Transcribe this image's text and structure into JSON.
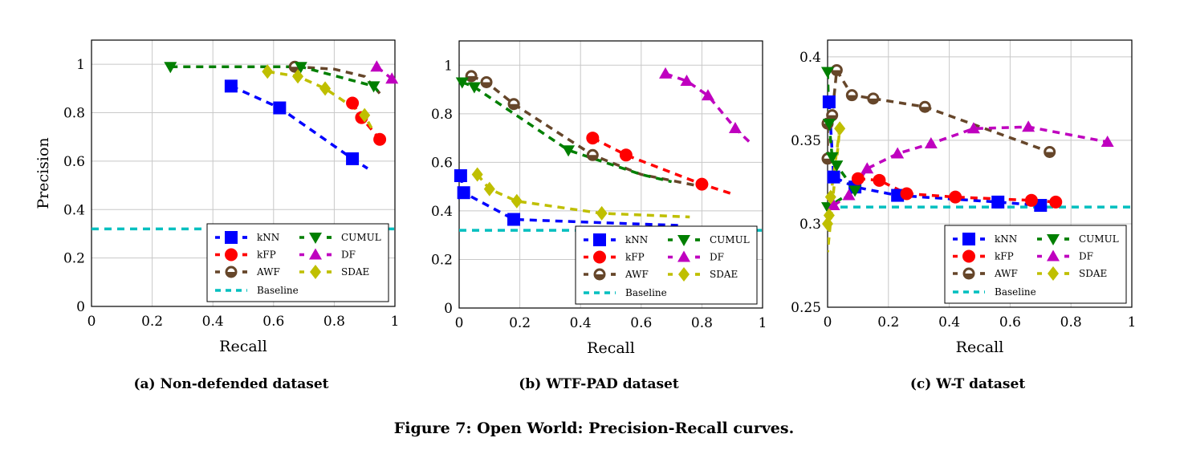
{
  "figure_caption": "Figure 7: Open World: Precision-Recall curves.",
  "colors": {
    "kNN": "#0000ff",
    "kFP": "#ff0000",
    "AWF": "#66462a",
    "CUMUL": "#007f00",
    "DF": "#bf00bf",
    "SDAE": "#bfbf00",
    "Baseline": "#00bfbf"
  },
  "chart_data": [
    {
      "type": "line",
      "caption": "(a) Non-defended dataset",
      "xlabel": "Recall",
      "ylabel": "Precision",
      "xlim": [
        0,
        1
      ],
      "ylim": [
        0,
        1.1
      ],
      "xticks": [
        "0",
        "0.2",
        "0.4",
        "0.6",
        "0.8",
        "1"
      ],
      "xtick_values": [
        0,
        0.2,
        0.4,
        0.6,
        0.8,
        1
      ],
      "yticks": [
        "0",
        "0.2",
        "0.4",
        "0.6",
        "0.8",
        "1"
      ],
      "ytick_values": [
        0,
        0.2,
        0.4,
        0.6,
        0.8,
        1
      ],
      "grid": true,
      "legend": "bottom-right",
      "baseline": 0.32,
      "series": [
        {
          "name": "kNN",
          "marker": "square",
          "points": [
            [
              0.46,
              0.91
            ],
            [
              0.62,
              0.82
            ],
            [
              0.86,
              0.61
            ]
          ],
          "tail": [
            [
              0.91,
              0.57
            ]
          ]
        },
        {
          "name": "kFP",
          "marker": "circle",
          "points": [
            [
              0.86,
              0.84
            ],
            [
              0.89,
              0.78
            ],
            [
              0.95,
              0.69
            ]
          ],
          "tail": []
        },
        {
          "name": "AWF",
          "marker": "ocircle",
          "points": [
            [
              0.67,
              0.99
            ]
          ],
          "tail": [
            [
              0.8,
              0.98
            ],
            [
              0.9,
              0.95
            ],
            [
              0.95,
              0.88
            ]
          ]
        },
        {
          "name": "CUMUL",
          "marker": "tridown",
          "points": [
            [
              0.26,
              0.99
            ],
            [
              0.69,
              0.99
            ],
            [
              0.93,
              0.91
            ]
          ],
          "tail": [
            [
              0.95,
              0.88
            ]
          ]
        },
        {
          "name": "DF",
          "marker": "triup",
          "points": [
            [
              0.94,
              0.99
            ],
            [
              0.99,
              0.94
            ]
          ],
          "tail": []
        },
        {
          "name": "SDAE",
          "marker": "diamond",
          "points": [
            [
              0.58,
              0.97
            ],
            [
              0.68,
              0.95
            ],
            [
              0.77,
              0.9
            ],
            [
              0.9,
              0.79
            ]
          ],
          "tail": [
            [
              0.93,
              0.72
            ]
          ]
        }
      ]
    },
    {
      "type": "line",
      "caption": "(b) WTF-PAD dataset",
      "xlabel": "Recall",
      "ylabel": "",
      "xlim": [
        0,
        1
      ],
      "ylim": [
        0,
        1.1
      ],
      "xticks": [
        "0",
        "0.2",
        "0.4",
        "0.6",
        "0.8",
        "1"
      ],
      "xtick_values": [
        0,
        0.2,
        0.4,
        0.6,
        0.8,
        1
      ],
      "yticks": [
        "0",
        "0.2",
        "0.4",
        "0.6",
        "0.8",
        "1"
      ],
      "ytick_values": [
        0,
        0.2,
        0.4,
        0.6,
        0.8,
        1
      ],
      "grid": true,
      "legend": "bottom-right",
      "baseline": 0.32,
      "series": [
        {
          "name": "kNN",
          "marker": "square",
          "points": [
            [
              0.005,
              0.545
            ],
            [
              0.015,
              0.475
            ],
            [
              0.18,
              0.365
            ]
          ],
          "tail": [
            [
              0.5,
              0.35
            ],
            [
              0.73,
              0.34
            ]
          ]
        },
        {
          "name": "kFP",
          "marker": "circle",
          "points": [
            [
              0.44,
              0.7
            ],
            [
              0.55,
              0.63
            ],
            [
              0.8,
              0.51
            ]
          ],
          "tail": [
            [
              0.9,
              0.47
            ]
          ]
        },
        {
          "name": "AWF",
          "marker": "ocircle",
          "points": [
            [
              0.04,
              0.955
            ],
            [
              0.09,
              0.93
            ],
            [
              0.18,
              0.84
            ],
            [
              0.44,
              0.63
            ]
          ],
          "tail": [
            [
              0.6,
              0.55
            ],
            [
              0.8,
              0.5
            ]
          ]
        },
        {
          "name": "CUMUL",
          "marker": "tridown",
          "points": [
            [
              0.01,
              0.93
            ],
            [
              0.05,
              0.91
            ],
            [
              0.36,
              0.65
            ]
          ],
          "tail": [
            [
              0.6,
              0.55
            ],
            [
              0.7,
              0.52
            ]
          ]
        },
        {
          "name": "DF",
          "marker": "triup",
          "points": [
            [
              0.68,
              0.965
            ],
            [
              0.75,
              0.935
            ],
            [
              0.82,
              0.875
            ],
            [
              0.91,
              0.74
            ]
          ],
          "tail": [
            [
              0.96,
              0.68
            ]
          ]
        },
        {
          "name": "SDAE",
          "marker": "diamond",
          "points": [
            [
              0.06,
              0.55
            ],
            [
              0.1,
              0.49
            ],
            [
              0.19,
              0.44
            ],
            [
              0.47,
              0.39
            ]
          ],
          "tail": [
            [
              0.76,
              0.375
            ]
          ]
        }
      ]
    },
    {
      "type": "line",
      "caption": "(c) W-T dataset",
      "xlabel": "Recall",
      "ylabel": "",
      "xlim": [
        0,
        1
      ],
      "ylim": [
        0.25,
        0.41
      ],
      "xticks": [
        "0",
        "0.2",
        "0.4",
        "0.6",
        "0.8",
        "1"
      ],
      "xtick_values": [
        0,
        0.2,
        0.4,
        0.6,
        0.8,
        1
      ],
      "yticks": [
        "0.25",
        "0.3",
        "0.35",
        "0.4"
      ],
      "ytick_values": [
        0.25,
        0.3,
        0.35,
        0.4
      ],
      "grid": true,
      "legend": "bottom-right",
      "baseline": 0.31,
      "series": [
        {
          "name": "kNN",
          "marker": "square",
          "points": [
            [
              0.005,
              0.373
            ],
            [
              0.02,
              0.328
            ],
            [
              0.09,
              0.322
            ],
            [
              0.23,
              0.317
            ],
            [
              0.56,
              0.313
            ],
            [
              0.7,
              0.311
            ]
          ],
          "tail": []
        },
        {
          "name": "kFP",
          "marker": "circle",
          "points": [
            [
              0.1,
              0.327
            ],
            [
              0.17,
              0.326
            ],
            [
              0.26,
              0.318
            ],
            [
              0.42,
              0.316
            ],
            [
              0.67,
              0.314
            ],
            [
              0.75,
              0.313
            ]
          ],
          "tail": []
        },
        {
          "name": "AWF",
          "marker": "ocircle",
          "points": [
            [
              0.0,
              0.339
            ],
            [
              0.0,
              0.36
            ],
            [
              0.015,
              0.365
            ],
            [
              0.03,
              0.392
            ],
            [
              0.08,
              0.377
            ],
            [
              0.15,
              0.375
            ],
            [
              0.32,
              0.37
            ],
            [
              0.73,
              0.343
            ]
          ],
          "tail": []
        },
        {
          "name": "CUMUL",
          "marker": "tridown",
          "points": [
            [
              0.0,
              0.391
            ],
            [
              0.005,
              0.36
            ],
            [
              0.015,
              0.34
            ],
            [
              0.03,
              0.335
            ],
            [
              0.09,
              0.32
            ],
            [
              0.0,
              0.31
            ]
          ],
          "tail": []
        },
        {
          "name": "DF",
          "marker": "triup",
          "points": [
            [
              0.02,
              0.311
            ],
            [
              0.07,
              0.317
            ],
            [
              0.13,
              0.333
            ],
            [
              0.23,
              0.342
            ],
            [
              0.34,
              0.348
            ],
            [
              0.48,
              0.357
            ],
            [
              0.66,
              0.358
            ],
            [
              0.92,
              0.349
            ]
          ],
          "tail": []
        },
        {
          "name": "SDAE",
          "marker": "diamond",
          "points": [
            [
              0.0,
              0.3
            ],
            [
              0.005,
              0.305
            ],
            [
              0.01,
              0.316
            ],
            [
              0.04,
              0.357
            ]
          ],
          "tail": [
            [
              0.0,
              0.283
            ]
          ]
        }
      ]
    }
  ],
  "legend_order": [
    "kNN",
    "CUMUL",
    "kFP",
    "DF",
    "AWF",
    "SDAE",
    "Baseline"
  ]
}
